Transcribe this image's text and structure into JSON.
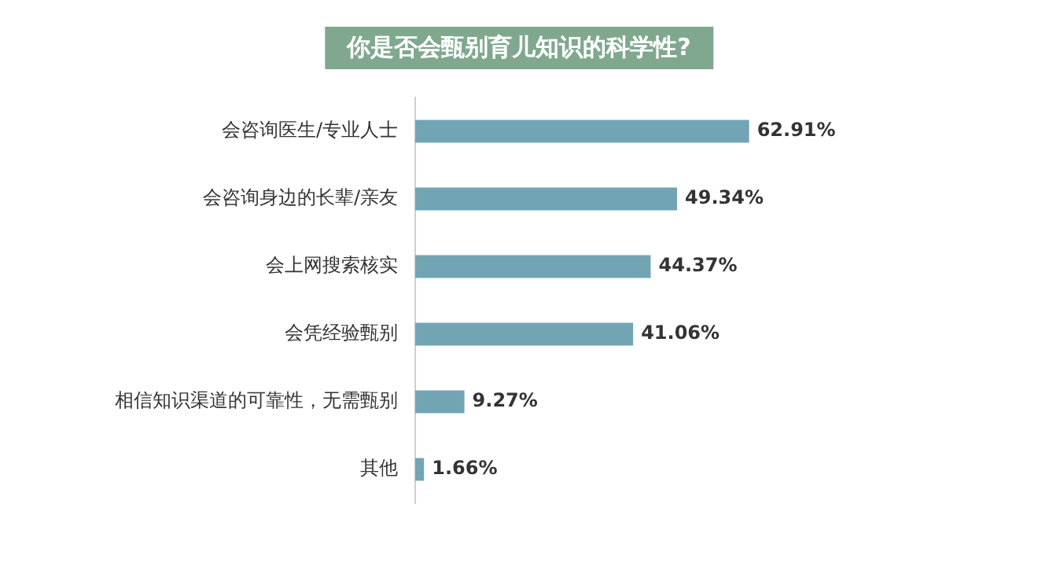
{
  "chart_data": {
    "type": "bar",
    "orientation": "horizontal",
    "title": "你是否会甄别育儿知识的科学性?",
    "categories": [
      "会咨询医生/专业人士",
      "会咨询身边的长辈/亲友",
      "会上网搜索核实",
      "会凭经验甄别",
      "相信知识渠道的可靠性，无需甄别",
      "其他"
    ],
    "values": [
      62.91,
      49.34,
      44.37,
      41.06,
      9.27,
      1.66
    ],
    "value_labels": [
      "62.91%",
      "49.34%",
      "44.37%",
      "41.06%",
      "9.27%",
      "1.66%"
    ],
    "color": "#72a5b3",
    "grid": false,
    "legend": false
  }
}
